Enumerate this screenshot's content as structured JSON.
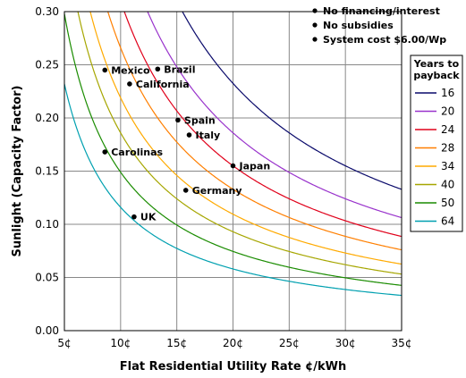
{
  "chart_data": {
    "type": "line",
    "xlabel": "Flat Residential Utility Rate ¢/kWh",
    "ylabel": "Sunlight (Capacity Factor)",
    "xlim": [
      5,
      35
    ],
    "ylim": [
      0,
      0.3
    ],
    "x_ticks": [
      "5¢",
      "10¢",
      "15¢",
      "20¢",
      "25¢",
      "30¢",
      "35¢"
    ],
    "y_ticks": [
      "0.00",
      "0.05",
      "0.10",
      "0.15",
      "0.20",
      "0.25",
      "0.30"
    ],
    "grid": true,
    "legend_title": "Years to payback",
    "legend_position": "right",
    "series": [
      {
        "name": "16",
        "color": "#0a0a6b",
        "k": 4.65
      },
      {
        "name": "20",
        "color": "#9933cc",
        "k": 3.72
      },
      {
        "name": "24",
        "color": "#e0001a",
        "k": 3.1
      },
      {
        "name": "28",
        "color": "#ff7f00",
        "k": 2.66
      },
      {
        "name": "34",
        "color": "#ffaa00",
        "k": 2.19
      },
      {
        "name": "40",
        "color": "#a6a600",
        "k": 1.86
      },
      {
        "name": "50",
        "color": "#1a8c00",
        "k": 1.49
      },
      {
        "name": "64",
        "color": "#00a0b0",
        "k": 1.16
      }
    ],
    "points": [
      {
        "label": "Mexico",
        "x": 8.6,
        "y": 0.245
      },
      {
        "label": "Brazil",
        "x": 13.3,
        "y": 0.246
      },
      {
        "label": "California",
        "x": 10.8,
        "y": 0.232
      },
      {
        "label": "Spain",
        "x": 15.1,
        "y": 0.198
      },
      {
        "label": "Italy",
        "x": 16.1,
        "y": 0.184
      },
      {
        "label": "Carolinas",
        "x": 8.6,
        "y": 0.168
      },
      {
        "label": "Japan",
        "x": 20.0,
        "y": 0.155
      },
      {
        "label": "Germany",
        "x": 15.8,
        "y": 0.132
      },
      {
        "label": "UK",
        "x": 11.2,
        "y": 0.107
      }
    ],
    "notes": [
      "No financing/interest",
      "No subsidies",
      "System cost $6.00/Wp"
    ]
  }
}
